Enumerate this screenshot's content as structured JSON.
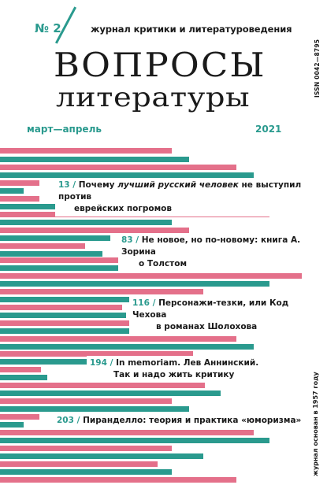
{
  "issue": "№ 2",
  "subtitle": "журнал критики и литературоведения",
  "title_line1": "ВОПРОСЫ",
  "title_line2": "литературы",
  "issn": "ISSN 0042—8795",
  "period": "март—апрель",
  "year": "2021",
  "founded": "журнал основан в 1957 году",
  "colors": {
    "teal": "#2a9a8e",
    "pink": "#e4708a"
  },
  "contents": [
    {
      "page": "13 /",
      "text_before": "Почему ",
      "text_italic": "лучший русский человек",
      "text_after": " не выступил против",
      "line2": "еврейских погромов"
    },
    {
      "page": "83 /",
      "text_before": "Не новое, но по-новому: книга А. Зорина",
      "text_italic": "",
      "text_after": "",
      "line2": "о Толстом"
    },
    {
      "page": "116 /",
      "text_before": "Персонажи-тезки, или Код Чехова",
      "text_italic": "",
      "text_after": "",
      "line2": "в романах Шолохова"
    },
    {
      "page": "194 /",
      "text_before": "In memoriam. Лев Аннинский.",
      "text_italic": "",
      "text_after": "",
      "line2": "Так и надо жить критику"
    },
    {
      "page": "203 /",
      "text_before": "Пиранделло: теория и практика «юморизма»",
      "text_italic": "",
      "text_after": "",
      "line2": ""
    }
  ]
}
